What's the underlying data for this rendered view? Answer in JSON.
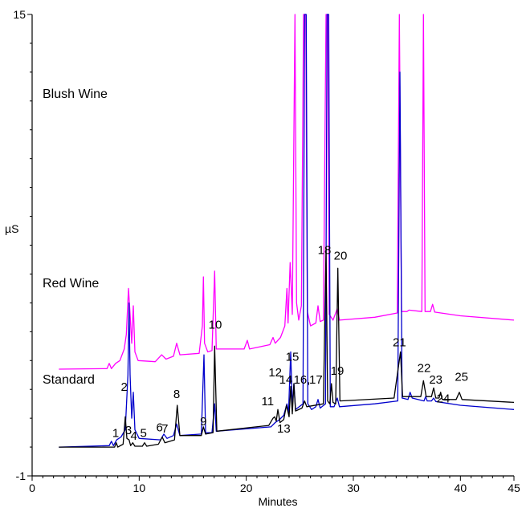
{
  "chart_data": {
    "type": "line",
    "xlabel": "Minutes",
    "ylabel": "µS",
    "xlim": [
      0,
      45
    ],
    "ylim": [
      -1,
      15
    ],
    "x_ticks": [
      "0",
      "10",
      "20",
      "30",
      "40",
      "45"
    ],
    "y_ticks": [
      "-1",
      "15"
    ],
    "grid": false,
    "series": [
      {
        "name": "Blush Wine",
        "color": "#ff00ff",
        "points": [
          [
            2.5,
            2.7
          ],
          [
            7.0,
            2.72
          ],
          [
            7.2,
            2.9
          ],
          [
            7.4,
            2.72
          ],
          [
            7.8,
            2.9
          ],
          [
            8.2,
            3.0
          ],
          [
            8.6,
            3.4
          ],
          [
            8.8,
            3.9
          ],
          [
            9.0,
            5.5
          ],
          [
            9.15,
            4.6
          ],
          [
            9.3,
            3.6
          ],
          [
            9.45,
            4.9
          ],
          [
            9.6,
            3.3
          ],
          [
            9.9,
            3.0
          ],
          [
            11.5,
            2.96
          ],
          [
            12.1,
            3.2
          ],
          [
            12.5,
            3.05
          ],
          [
            13.2,
            3.15
          ],
          [
            13.5,
            3.6
          ],
          [
            13.8,
            3.2
          ],
          [
            15.6,
            3.25
          ],
          [
            15.9,
            4.2
          ],
          [
            16.0,
            5.9
          ],
          [
            16.1,
            3.6
          ],
          [
            16.4,
            3.3
          ],
          [
            16.8,
            3.35
          ],
          [
            17.05,
            6.1
          ],
          [
            17.2,
            3.4
          ],
          [
            19.8,
            3.4
          ],
          [
            20.1,
            3.7
          ],
          [
            20.3,
            3.4
          ],
          [
            22.2,
            3.55
          ],
          [
            22.5,
            3.8
          ],
          [
            22.7,
            3.6
          ],
          [
            23.2,
            3.8
          ],
          [
            23.6,
            4.2
          ],
          [
            23.8,
            5.5
          ],
          [
            23.9,
            4.3
          ],
          [
            24.1,
            6.4
          ],
          [
            24.3,
            4.6
          ],
          [
            24.55,
            15.2
          ],
          [
            24.7,
            5.0
          ],
          [
            24.9,
            4.4
          ],
          [
            25.15,
            4.9
          ],
          [
            25.35,
            15.2
          ],
          [
            25.55,
            15.2
          ],
          [
            25.7,
            4.7
          ],
          [
            26.0,
            4.2
          ],
          [
            26.5,
            4.3
          ],
          [
            26.7,
            4.9
          ],
          [
            26.9,
            4.35
          ],
          [
            27.2,
            4.4
          ],
          [
            27.45,
            15.2
          ],
          [
            27.6,
            15.2
          ],
          [
            27.75,
            4.6
          ],
          [
            28.1,
            4.4
          ],
          [
            28.5,
            4.8
          ],
          [
            28.7,
            4.4
          ],
          [
            32.0,
            4.5
          ],
          [
            34.1,
            4.65
          ],
          [
            34.3,
            15.2
          ],
          [
            34.5,
            4.7
          ],
          [
            35.0,
            4.7
          ],
          [
            35.2,
            4.75
          ],
          [
            36.4,
            4.7
          ],
          [
            36.55,
            15.2
          ],
          [
            36.7,
            4.7
          ],
          [
            37.2,
            4.7
          ],
          [
            37.4,
            4.95
          ],
          [
            37.6,
            4.68
          ],
          [
            40.0,
            4.55
          ],
          [
            45.0,
            4.4
          ]
        ]
      },
      {
        "name": "Red Wine",
        "color": "#0000cc",
        "points": [
          [
            2.5,
            0.0
          ],
          [
            7.2,
            0.05
          ],
          [
            7.4,
            0.2
          ],
          [
            7.6,
            0.05
          ],
          [
            7.9,
            0.25
          ],
          [
            8.3,
            0.35
          ],
          [
            8.7,
            0.6
          ],
          [
            8.95,
            2.5
          ],
          [
            9.05,
            5.0
          ],
          [
            9.15,
            2.5
          ],
          [
            9.3,
            1.0
          ],
          [
            9.45,
            1.9
          ],
          [
            9.6,
            0.6
          ],
          [
            10.0,
            0.3
          ],
          [
            12.0,
            0.25
          ],
          [
            12.3,
            0.45
          ],
          [
            12.6,
            0.3
          ],
          [
            13.2,
            0.4
          ],
          [
            13.5,
            0.8
          ],
          [
            13.8,
            0.4
          ],
          [
            15.8,
            0.45
          ],
          [
            16.05,
            3.2
          ],
          [
            16.2,
            0.5
          ],
          [
            16.8,
            0.5
          ],
          [
            17.05,
            1.5
          ],
          [
            17.2,
            0.55
          ],
          [
            22.3,
            0.7
          ],
          [
            22.7,
            0.85
          ],
          [
            23.1,
            0.95
          ],
          [
            23.5,
            1.1
          ],
          [
            23.8,
            1.5
          ],
          [
            23.95,
            1.2
          ],
          [
            24.15,
            3.3
          ],
          [
            24.3,
            1.4
          ],
          [
            24.45,
            2.2
          ],
          [
            24.6,
            1.3
          ],
          [
            25.3,
            1.5
          ],
          [
            25.45,
            15.2
          ],
          [
            25.6,
            15.2
          ],
          [
            25.75,
            1.5
          ],
          [
            26.1,
            1.3
          ],
          [
            26.5,
            1.4
          ],
          [
            26.7,
            1.65
          ],
          [
            26.9,
            1.35
          ],
          [
            27.4,
            1.5
          ],
          [
            27.55,
            15.2
          ],
          [
            27.7,
            15.2
          ],
          [
            27.85,
            1.4
          ],
          [
            28.2,
            1.4
          ],
          [
            28.5,
            1.7
          ],
          [
            28.7,
            1.4
          ],
          [
            32.0,
            1.5
          ],
          [
            34.15,
            1.6
          ],
          [
            34.35,
            13.0
          ],
          [
            34.55,
            1.7
          ],
          [
            35.1,
            1.65
          ],
          [
            35.3,
            1.9
          ],
          [
            35.5,
            1.7
          ],
          [
            36.6,
            1.6
          ],
          [
            36.75,
            1.75
          ],
          [
            36.9,
            1.6
          ],
          [
            37.3,
            1.6
          ],
          [
            37.5,
            1.7
          ],
          [
            37.7,
            1.58
          ],
          [
            40.0,
            1.45
          ],
          [
            45.0,
            1.3
          ]
        ]
      },
      {
        "name": "Standard",
        "color": "#000000",
        "points": [
          [
            2.5,
            0.0
          ],
          [
            7.7,
            0.0
          ],
          [
            7.85,
            0.15
          ],
          [
            8.0,
            0.0
          ],
          [
            8.5,
            0.1
          ],
          [
            8.7,
            1.05
          ],
          [
            8.85,
            0.3
          ],
          [
            9.05,
            0.25
          ],
          [
            9.2,
            0.05
          ],
          [
            9.4,
            0.15
          ],
          [
            9.6,
            0.03
          ],
          [
            10.3,
            0.03
          ],
          [
            10.5,
            0.15
          ],
          [
            10.7,
            0.03
          ],
          [
            11.8,
            0.1
          ],
          [
            12.15,
            0.35
          ],
          [
            12.4,
            0.15
          ],
          [
            13.3,
            0.25
          ],
          [
            13.55,
            1.45
          ],
          [
            13.8,
            0.4
          ],
          [
            15.8,
            0.4
          ],
          [
            16.0,
            0.7
          ],
          [
            16.2,
            0.45
          ],
          [
            16.9,
            0.5
          ],
          [
            17.05,
            3.5
          ],
          [
            17.25,
            0.55
          ],
          [
            22.1,
            0.75
          ],
          [
            22.5,
            1.0
          ],
          [
            22.65,
            1.05
          ],
          [
            22.8,
            0.9
          ],
          [
            22.95,
            1.3
          ],
          [
            23.15,
            0.85
          ],
          [
            23.5,
            0.95
          ],
          [
            23.75,
            1.45
          ],
          [
            24.0,
            1.05
          ],
          [
            24.15,
            2.1
          ],
          [
            24.3,
            1.15
          ],
          [
            24.45,
            2.2
          ],
          [
            24.6,
            1.25
          ],
          [
            25.2,
            1.35
          ],
          [
            25.45,
            1.6
          ],
          [
            25.65,
            1.4
          ],
          [
            27.2,
            1.5
          ],
          [
            27.45,
            6.9
          ],
          [
            27.6,
            1.6
          ],
          [
            27.8,
            1.5
          ],
          [
            27.95,
            2.2
          ],
          [
            28.1,
            1.55
          ],
          [
            28.35,
            1.5
          ],
          [
            28.55,
            6.2
          ],
          [
            28.75,
            1.6
          ],
          [
            33.8,
            1.7
          ],
          [
            34.4,
            3.3
          ],
          [
            34.6,
            1.75
          ],
          [
            36.3,
            1.75
          ],
          [
            36.55,
            2.3
          ],
          [
            36.8,
            1.75
          ],
          [
            37.3,
            1.75
          ],
          [
            37.5,
            2.05
          ],
          [
            37.7,
            1.7
          ],
          [
            38.0,
            1.7
          ],
          [
            38.15,
            1.9
          ],
          [
            38.3,
            1.65
          ],
          [
            39.6,
            1.65
          ],
          [
            39.9,
            1.9
          ],
          [
            40.15,
            1.65
          ],
          [
            45.0,
            1.55
          ]
        ]
      }
    ],
    "peak_labels": [
      {
        "text": "1",
        "x": 7.8,
        "y": 0.35
      },
      {
        "text": "2",
        "x": 8.6,
        "y": 1.95
      },
      {
        "text": "3",
        "x": 9.0,
        "y": 0.45
      },
      {
        "text": "4",
        "x": 9.5,
        "y": 0.25
      },
      {
        "text": "5",
        "x": 10.4,
        "y": 0.35
      },
      {
        "text": "6",
        "x": 11.9,
        "y": 0.55
      },
      {
        "text": "7",
        "x": 12.4,
        "y": 0.5
      },
      {
        "text": "8",
        "x": 13.5,
        "y": 1.7
      },
      {
        "text": "9",
        "x": 16.0,
        "y": 0.75
      },
      {
        "text": "10",
        "x": 17.1,
        "y": 4.1
      },
      {
        "text": "11",
        "x": 22.0,
        "y": 1.45
      },
      {
        "text": "12",
        "x": 22.7,
        "y": 2.45
      },
      {
        "text": "13",
        "x": 23.5,
        "y": 0.5
      },
      {
        "text": "14",
        "x": 23.7,
        "y": 2.2
      },
      {
        "text": "15",
        "x": 24.3,
        "y": 3.0
      },
      {
        "text": "16,",
        "x": 25.2,
        "y": 2.2
      },
      {
        "text": "17",
        "x": 26.5,
        "y": 2.2
      },
      {
        "text": "18",
        "x": 27.3,
        "y": 6.7
      },
      {
        "text": "19",
        "x": 28.5,
        "y": 2.5
      },
      {
        "text": "20",
        "x": 28.8,
        "y": 6.5
      },
      {
        "text": "21",
        "x": 34.3,
        "y": 3.5
      },
      {
        "text": "22",
        "x": 36.6,
        "y": 2.6
      },
      {
        "text": "23",
        "x": 37.7,
        "y": 2.2
      },
      {
        "text": "24",
        "x": 38.4,
        "y": 1.55
      },
      {
        "text": "25",
        "x": 40.1,
        "y": 2.3
      }
    ]
  }
}
